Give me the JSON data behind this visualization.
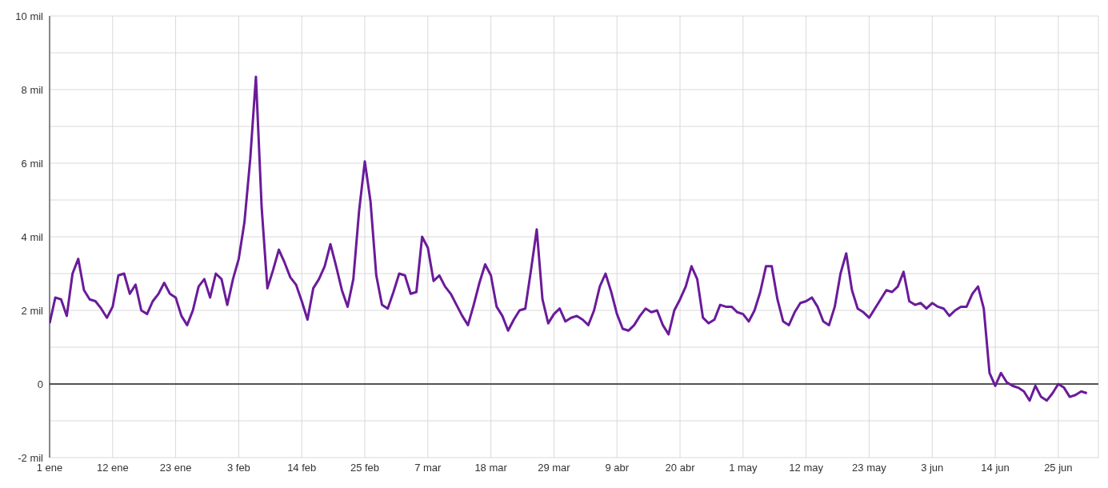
{
  "chart_data": {
    "type": "line",
    "grid": true,
    "marker": "none",
    "line_style": "solid",
    "xlim": [
      "--01-01",
      "--07-02"
    ],
    "xticks": [
      {
        "value": "--01-01",
        "label": "1 ene"
      },
      {
        "value": "--01-12",
        "label": "12 ene"
      },
      {
        "value": "--01-23",
        "label": "23 ene"
      },
      {
        "value": "--02-03",
        "label": "3 feb"
      },
      {
        "value": "--02-14",
        "label": "14 feb"
      },
      {
        "value": "--02-25",
        "label": "25 feb"
      },
      {
        "value": "--03-07",
        "label": "7 mar"
      },
      {
        "value": "--03-18",
        "label": "18 mar"
      },
      {
        "value": "--03-29",
        "label": "29 mar"
      },
      {
        "value": "--04-09",
        "label": "9 abr"
      },
      {
        "value": "--04-20",
        "label": "20 abr"
      },
      {
        "value": "--05-01",
        "label": "1 may"
      },
      {
        "value": "--05-12",
        "label": "12 may"
      },
      {
        "value": "--05-23",
        "label": "23 may"
      },
      {
        "value": "--06-03",
        "label": "3 jun"
      },
      {
        "value": "--06-14",
        "label": "14 jun"
      },
      {
        "value": "--06-25",
        "label": "25 jun"
      }
    ],
    "ylim": [
      -2,
      10
    ],
    "yticks": [
      {
        "value": -2,
        "label": "-2 mil"
      },
      {
        "value": -1,
        "label": null
      },
      0,
      {
        "value": 1,
        "label": null
      },
      {
        "value": 2,
        "label": "2 mil"
      },
      {
        "value": 3,
        "label": null
      },
      {
        "value": 4,
        "label": "4 mil"
      },
      {
        "value": 5,
        "label": null
      },
      {
        "value": 6,
        "label": "6 mil"
      },
      {
        "value": 7,
        "label": null
      },
      {
        "value": 8,
        "label": "8 mil"
      },
      {
        "value": 9,
        "label": null
      },
      {
        "value": 10,
        "label": "10 mil"
      }
    ],
    "ref_lines": [
      {
        "axis": "y",
        "value": 0,
        "color": "#222222"
      }
    ],
    "x": [
      "--01-01",
      "--01-02",
      "--01-03",
      "--01-04",
      "--01-05",
      "--01-06",
      "--01-07",
      "--01-08",
      "--01-09",
      "--01-10",
      "--01-11",
      "--01-12",
      "--01-13",
      "--01-14",
      "--01-15",
      "--01-16",
      "--01-17",
      "--01-18",
      "--01-19",
      "--01-20",
      "--01-21",
      "--01-22",
      "--01-23",
      "--01-24",
      "--01-25",
      "--01-26",
      "--01-27",
      "--01-28",
      "--01-29",
      "--01-30",
      "--01-31",
      "--02-01",
      "--02-02",
      "--02-03",
      "--02-04",
      "--02-05",
      "--02-06",
      "--02-07",
      "--02-08",
      "--02-09",
      "--02-10",
      "--02-11",
      "--02-12",
      "--02-13",
      "--02-14",
      "--02-15",
      "--02-16",
      "--02-17",
      "--02-18",
      "--02-19",
      "--02-20",
      "--02-21",
      "--02-22",
      "--02-23",
      "--02-24",
      "--02-25",
      "--02-26",
      "--02-27",
      "--02-28",
      "--02-29",
      "--03-01",
      "--03-02",
      "--03-03",
      "--03-04",
      "--03-05",
      "--03-06",
      "--03-07",
      "--03-08",
      "--03-09",
      "--03-10",
      "--03-11",
      "--03-12",
      "--03-13",
      "--03-14",
      "--03-15",
      "--03-16",
      "--03-17",
      "--03-18",
      "--03-19",
      "--03-20",
      "--03-21",
      "--03-22",
      "--03-23",
      "--03-24",
      "--03-25",
      "--03-26",
      "--03-27",
      "--03-28",
      "--03-29",
      "--03-30",
      "--03-31",
      "--04-01",
      "--04-02",
      "--04-03",
      "--04-04",
      "--04-05",
      "--04-06",
      "--04-07",
      "--04-08",
      "--04-09",
      "--04-10",
      "--04-11",
      "--04-12",
      "--04-13",
      "--04-14",
      "--04-15",
      "--04-16",
      "--04-17",
      "--04-18",
      "--04-19",
      "--04-20",
      "--04-21",
      "--04-22",
      "--04-23",
      "--04-24",
      "--04-25",
      "--04-26",
      "--04-27",
      "--04-28",
      "--04-29",
      "--04-30",
      "--05-01",
      "--05-02",
      "--05-03",
      "--05-04",
      "--05-05",
      "--05-06",
      "--05-07",
      "--05-08",
      "--05-09",
      "--05-10",
      "--05-11",
      "--05-12",
      "--05-13",
      "--05-14",
      "--05-15",
      "--05-16",
      "--05-17",
      "--05-18",
      "--05-19",
      "--05-20",
      "--05-21",
      "--05-22",
      "--05-23",
      "--05-24",
      "--05-25",
      "--05-26",
      "--05-27",
      "--05-28",
      "--05-29",
      "--05-30",
      "--05-31",
      "--06-01",
      "--06-02",
      "--06-03",
      "--06-04",
      "--06-05",
      "--06-06",
      "--06-07",
      "--06-08",
      "--06-09",
      "--06-10",
      "--06-11",
      "--06-12",
      "--06-13",
      "--06-14",
      "--06-15",
      "--06-16",
      "--06-17",
      "--06-18",
      "--06-19",
      "--06-20",
      "--06-21",
      "--06-22",
      "--06-23",
      "--06-24",
      "--06-25",
      "--06-26",
      "--06-27",
      "--06-28",
      "--06-29",
      "--06-30"
    ],
    "series": [
      {
        "color": "#6a1b9a",
        "values": [
          1.65,
          2.35,
          2.3,
          1.85,
          3.0,
          3.4,
          2.55,
          2.3,
          2.25,
          2.05,
          1.8,
          2.1,
          2.95,
          3.0,
          2.45,
          2.7,
          2.0,
          1.9,
          2.25,
          2.45,
          2.75,
          2.45,
          2.35,
          1.85,
          1.6,
          2.0,
          2.65,
          2.85,
          2.35,
          3.0,
          2.85,
          2.15,
          2.85,
          3.4,
          4.4,
          6.1,
          8.35,
          4.8,
          2.6,
          3.1,
          3.65,
          3.3,
          2.9,
          2.7,
          2.25,
          1.75,
          2.6,
          2.85,
          3.2,
          3.8,
          3.2,
          2.55,
          2.1,
          2.85,
          4.7,
          6.05,
          4.95,
          2.95,
          2.15,
          2.05,
          2.5,
          3.0,
          2.95,
          2.45,
          2.5,
          4.0,
          3.7,
          2.8,
          2.95,
          2.65,
          2.45,
          2.15,
          1.85,
          1.6,
          2.15,
          2.75,
          3.25,
          2.95,
          2.1,
          1.85,
          1.45,
          1.75,
          2.0,
          2.05,
          3.1,
          4.2,
          2.3,
          1.65,
          1.9,
          2.05,
          1.7,
          1.8,
          1.85,
          1.75,
          1.6,
          2.0,
          2.65,
          3.0,
          2.5,
          1.9,
          1.5,
          1.45,
          1.6,
          1.85,
          2.05,
          1.95,
          2.0,
          1.6,
          1.35,
          2.0,
          2.3,
          2.65,
          3.2,
          2.85,
          1.8,
          1.65,
          1.75,
          2.15,
          2.1,
          2.1,
          1.95,
          1.9,
          1.7,
          2.0,
          2.5,
          3.2,
          3.2,
          2.3,
          1.7,
          1.6,
          1.95,
          2.2,
          2.25,
          2.35,
          2.1,
          1.7,
          1.6,
          2.1,
          3.0,
          3.55,
          2.55,
          2.05,
          1.95,
          1.8,
          2.05,
          2.3,
          2.55,
          2.5,
          2.65,
          3.05,
          2.25,
          2.15,
          2.2,
          2.05,
          2.2,
          2.1,
          2.05,
          1.85,
          2.0,
          2.1,
          2.1,
          2.45,
          2.65,
          2.05,
          0.3,
          -0.05,
          0.3,
          0.05,
          -0.05,
          -0.1,
          -0.2,
          -0.45,
          -0.05,
          -0.35,
          -0.45,
          -0.25,
          0,
          -0.1,
          -0.35,
          -0.3,
          -0.2,
          -0.25
        ]
      }
    ]
  }
}
